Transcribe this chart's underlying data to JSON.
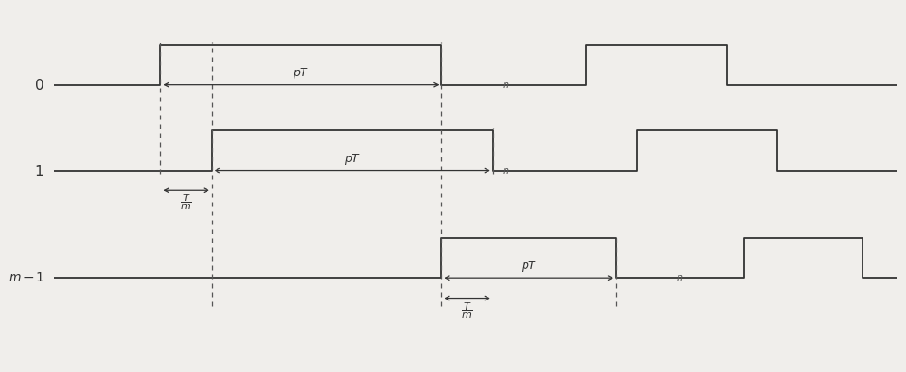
{
  "bg_color": "#f0eeeb",
  "line_color": "#333333",
  "dotted_color": "#666666",
  "sig0_base": 3.55,
  "sig0_high": 4.2,
  "sig1_base": 2.15,
  "sig1_high": 2.8,
  "sigm_base": 0.4,
  "sigm_high": 1.05,
  "x_s0_rise": 1.25,
  "x_s0_fall": 4.55,
  "x_s1_rise": 1.85,
  "x_s1_fall": 5.15,
  "x_sm_rise": 4.55,
  "x_sm_fall": 6.6,
  "x_n0": 5.3,
  "x_n1": 5.3,
  "x_nm": 7.35,
  "x_s0_rise2": 6.25,
  "x_s0_fall2": 7.9,
  "x_s1_rise2": 6.85,
  "x_s1_fall2": 8.5,
  "x_sm_rise2": 8.1,
  "x_sm_fall2": 9.5,
  "x_end": 9.9,
  "xlim": [
    0,
    9.9
  ],
  "ylim": [
    -0.95,
    4.75
  ],
  "figsize": [
    10.0,
    4.11
  ],
  "dpi": 100
}
